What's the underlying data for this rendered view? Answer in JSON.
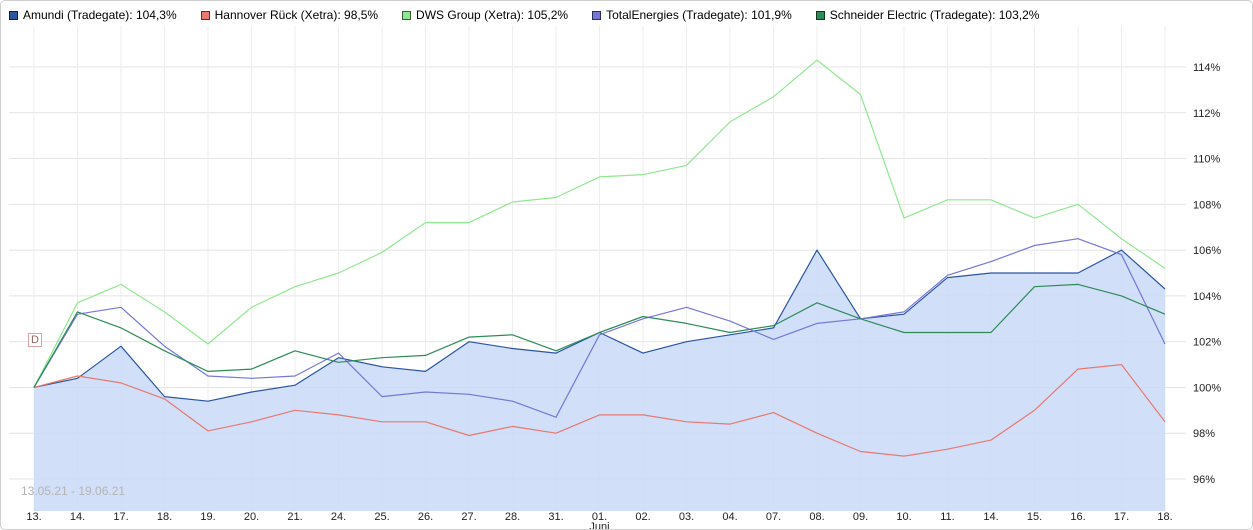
{
  "legend": [
    {
      "label": "Amundi (Tradegate): 104,3%",
      "color": "#2a55a3"
    },
    {
      "label": "Hannover Rück (Xetra): 98,5%",
      "color": "#e87870"
    },
    {
      "label": "DWS Group (Xetra): 105,2%",
      "color": "#90e890"
    },
    {
      "label": "TotalEnergies (Tradegate): 101,9%",
      "color": "#7577d8"
    },
    {
      "label": "Schneider Electric (Tradegate): 103,2%",
      "color": "#2e8b57"
    }
  ],
  "dividend_marker": "D",
  "date_range": "13.05.21 - 19.06.21",
  "chart_data": {
    "type": "line",
    "title": "",
    "xlabel": "",
    "ylabel": "",
    "x_labels": [
      "13.",
      "14.",
      "17.",
      "18.",
      "19.",
      "20.",
      "21.",
      "24.",
      "25.",
      "26.",
      "27.",
      "28.",
      "31.",
      "01.",
      "02.",
      "03.",
      "04.",
      "07.",
      "08.",
      "09.",
      "10.",
      "11.",
      "14.",
      "15.",
      "16.",
      "17.",
      "18."
    ],
    "month_label": "Juni",
    "month_label_index": 13,
    "y_ticks": [
      96,
      98,
      100,
      102,
      104,
      106,
      108,
      110,
      112,
      114
    ],
    "y_tick_suffix": "%",
    "ylim": [
      94.6,
      115.8
    ],
    "grid": true,
    "legend_position": "top",
    "series": [
      {
        "name": "Amundi (Tradegate)",
        "final": "104,3%",
        "color": "#2a55a3",
        "fill": "#c9dbf7",
        "values": [
          100,
          100.4,
          101.8,
          99.6,
          99.4,
          99.8,
          100.1,
          101.3,
          100.9,
          100.7,
          102.0,
          101.7,
          101.5,
          102.4,
          101.5,
          102.0,
          102.3,
          102.6,
          106.0,
          103.0,
          103.2,
          104.8,
          105.0,
          105.0,
          105.0,
          106.0,
          104.3
        ]
      },
      {
        "name": "Hannover Rück (Xetra)",
        "final": "98,5%",
        "color": "#e87870",
        "values": [
          100,
          100.5,
          100.2,
          99.5,
          98.1,
          98.5,
          99.0,
          98.8,
          98.5,
          98.5,
          97.9,
          98.3,
          98.0,
          98.8,
          98.8,
          98.5,
          98.4,
          98.9,
          98.0,
          97.2,
          97.0,
          97.3,
          97.7,
          99.0,
          100.8,
          101.0,
          98.5
        ]
      },
      {
        "name": "DWS Group (Xetra)",
        "final": "105,2%",
        "color": "#90e890",
        "values": [
          100,
          103.7,
          104.5,
          103.3,
          101.9,
          103.5,
          104.4,
          105.0,
          105.9,
          107.2,
          107.2,
          108.1,
          108.3,
          109.2,
          109.3,
          109.7,
          111.6,
          112.7,
          114.3,
          112.8,
          107.4,
          108.2,
          108.2,
          107.4,
          108.0,
          106.5,
          105.2
        ]
      },
      {
        "name": "TotalEnergies (Tradegate)",
        "final": "101,9%",
        "color": "#7577d8",
        "values": [
          100,
          103.2,
          103.5,
          101.8,
          100.5,
          100.4,
          100.5,
          101.5,
          99.6,
          99.8,
          99.7,
          99.4,
          98.7,
          102.3,
          103.0,
          103.5,
          102.9,
          102.1,
          102.8,
          103.0,
          103.3,
          104.9,
          105.5,
          106.2,
          106.5,
          105.8,
          101.9
        ]
      },
      {
        "name": "Schneider Electric (Tradegate)",
        "final": "103,2%",
        "color": "#2e8b57",
        "values": [
          100,
          103.3,
          102.6,
          101.6,
          100.7,
          100.8,
          101.6,
          101.1,
          101.3,
          101.4,
          102.2,
          102.3,
          101.6,
          102.4,
          103.1,
          102.8,
          102.4,
          102.7,
          103.7,
          103.0,
          102.4,
          102.4,
          102.4,
          104.4,
          104.5,
          104.0,
          103.2
        ]
      }
    ]
  }
}
